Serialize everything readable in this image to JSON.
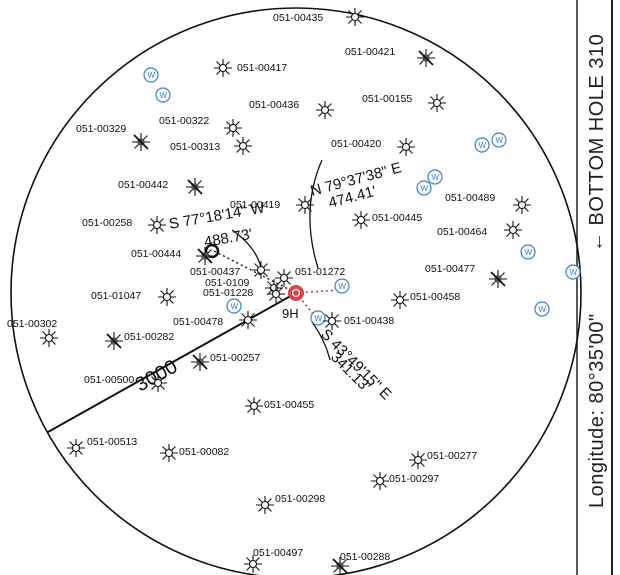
{
  "side_panel": {
    "longitude": "Longitude:  80°35'00\"",
    "bottom_hole": "← BOTTOM  HOLE  310"
  },
  "circle": {
    "radius_label": "3000"
  },
  "target_well": {
    "label": "9H",
    "color": "#d9434a"
  },
  "bearings": {
    "north_east": {
      "bearing": "N  79°37'38\"  E",
      "distance": "474.41'"
    },
    "south_west": {
      "bearing": "S  77°18'14\"  W",
      "distance": "488.73'"
    },
    "south_east": {
      "bearing": "S  43°49'15\"  E",
      "distance": "341.13'"
    }
  },
  "well_marker_letter": "W",
  "wells": [
    {
      "label": "051-00435",
      "type": "oil"
    },
    {
      "label": "051-00421",
      "type": "plugged"
    },
    {
      "label": "051-00417",
      "type": "oil"
    },
    {
      "label": "051-00436",
      "type": "oil"
    },
    {
      "label": "051-00155",
      "type": "oil"
    },
    {
      "label": "051-00322",
      "type": "oil"
    },
    {
      "label": "051-00329",
      "type": "plugged"
    },
    {
      "label": "051-00313",
      "type": "oil"
    },
    {
      "label": "051-00420",
      "type": "oil"
    },
    {
      "label": "051-00442",
      "type": "plugged"
    },
    {
      "label": "051-00489",
      "type": "oil"
    },
    {
      "label": "051-00419",
      "type": "oil"
    },
    {
      "label": "051-00258",
      "type": "oil"
    },
    {
      "label": "051-00445",
      "type": "oil"
    },
    {
      "label": "051-00464",
      "type": "oil"
    },
    {
      "label": "051-00444",
      "type": "plugged"
    },
    {
      "label": "051-00437",
      "type": "oil"
    },
    {
      "label": "051-01272",
      "type": "oil"
    },
    {
      "label": "051-0109",
      "type": "oil"
    },
    {
      "label": "051-01228",
      "type": "oil"
    },
    {
      "label": "051-00477",
      "type": "plugged"
    },
    {
      "label": "051-01047",
      "type": "oil"
    },
    {
      "label": "051-00458",
      "type": "oil"
    },
    {
      "label": "051-00478",
      "type": "oil"
    },
    {
      "label": "051-00438",
      "type": "oil"
    },
    {
      "label": "051-00302",
      "type": "oil"
    },
    {
      "label": "051-00282",
      "type": "plugged"
    },
    {
      "label": "051-00257",
      "type": "plugged"
    },
    {
      "label": "051-00500",
      "type": "oil"
    },
    {
      "label": "051-00455",
      "type": "oil"
    },
    {
      "label": "051-00513",
      "type": "oil"
    },
    {
      "label": "051-00082",
      "type": "oil"
    },
    {
      "label": "051-00277",
      "type": "oil"
    },
    {
      "label": "051-00297",
      "type": "oil"
    },
    {
      "label": "051-00298",
      "type": "oil"
    },
    {
      "label": "051-00497",
      "type": "oil"
    },
    {
      "label": "051-00288",
      "type": "plugged"
    }
  ]
}
